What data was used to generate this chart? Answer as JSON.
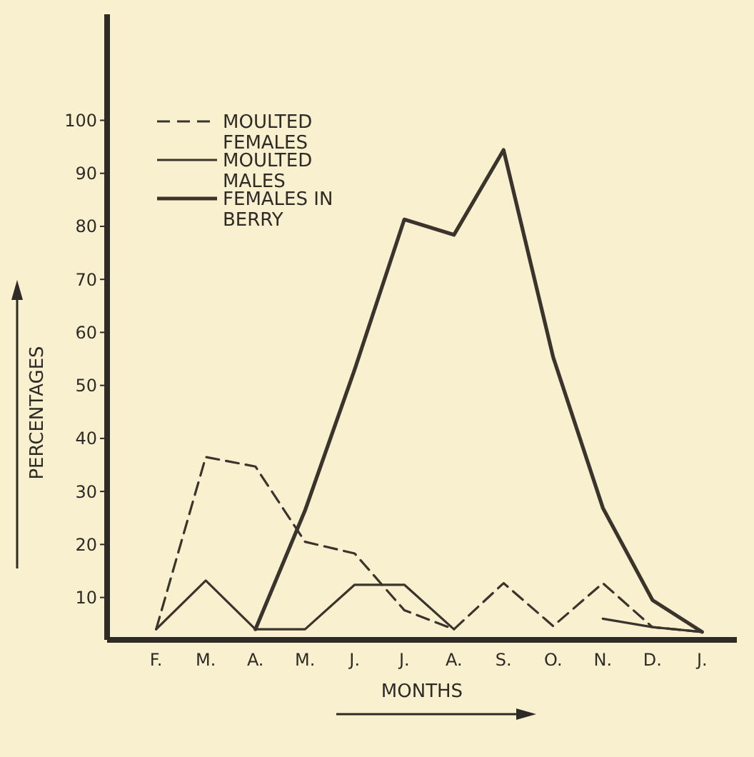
{
  "chart_data": {
    "type": "line",
    "xlabel": "MONTHS",
    "ylabel": "PERCENTAGES",
    "categories": [
      "F.",
      "M.",
      "A.",
      "M.",
      "J.",
      "J.",
      "A.",
      "S.",
      "O.",
      "N.",
      "D.",
      "J."
    ],
    "ylim": [
      2,
      120
    ],
    "yticks": [
      10,
      20,
      30,
      40,
      50,
      60,
      70,
      80,
      90,
      100
    ],
    "grid": false,
    "legend": "top left",
    "marker": "none",
    "series": [
      {
        "name": "MOULTED FEMALES",
        "color": "#3b342c",
        "line_style": "dashed",
        "values": [
          4,
          36.5,
          34.7,
          20.5,
          18.3,
          7.6,
          4,
          12.7,
          4.6,
          12.7,
          4.4,
          3.5
        ]
      },
      {
        "name": "MOULTED MALES",
        "color": "#3b342c",
        "line_style": "solid",
        "values": [
          4,
          13.2,
          4,
          4,
          12.4,
          12.4,
          4,
          null,
          null,
          6,
          4.4,
          3.5
        ]
      },
      {
        "name": "FEMALES IN BERRY",
        "color": "#3b342c",
        "line_style": "solid",
        "values": [
          null,
          null,
          4,
          26.4,
          53,
          81.3,
          78.4,
          94.4,
          55.3,
          26.9,
          9.5,
          3.5
        ]
      }
    ]
  }
}
